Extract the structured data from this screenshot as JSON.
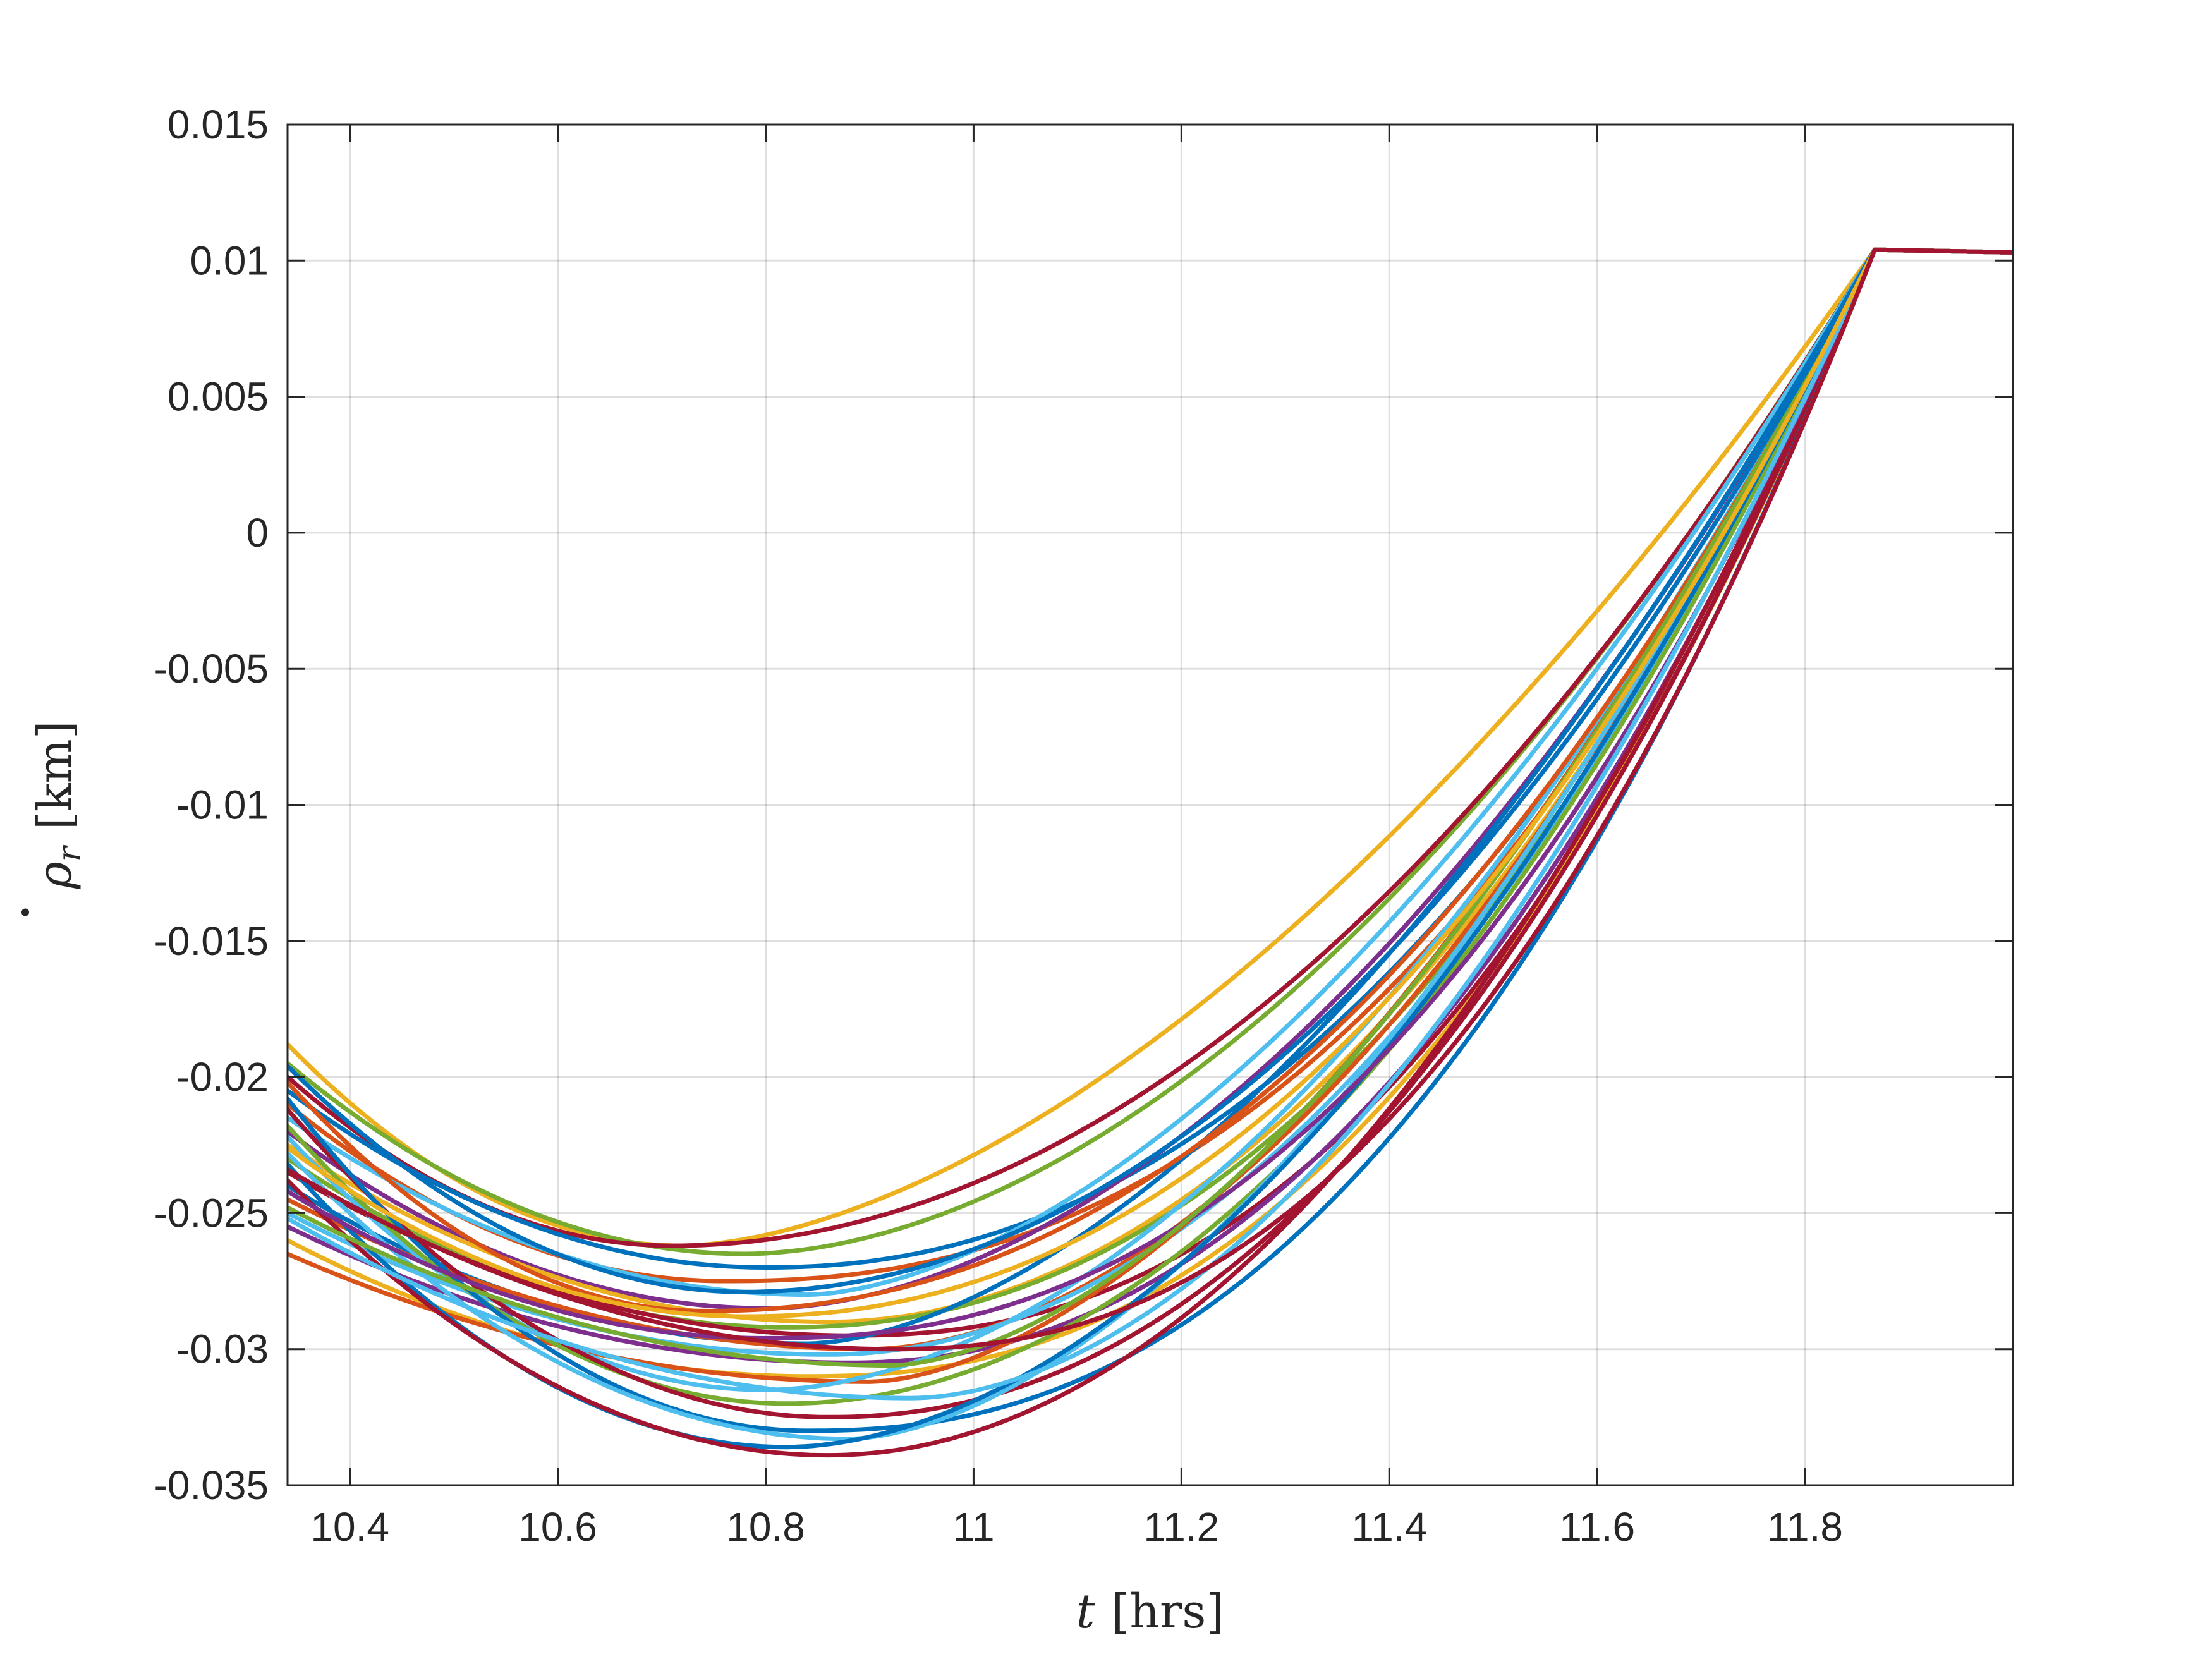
{
  "chart_data": {
    "type": "line",
    "title": "",
    "xlabel_var": "t",
    "xlabel_unit": "[hrs]",
    "ylabel_var": "ρ",
    "ylabel_sub": "r",
    "ylabel_unit": "[km]",
    "xlim": [
      10.34,
      12.0
    ],
    "ylim": [
      -0.035,
      0.015
    ],
    "xticks": [
      10.4,
      10.6,
      10.8,
      11,
      11.2,
      11.4,
      11.6,
      11.8
    ],
    "xtick_labels": [
      "10.4",
      "10.6",
      "10.8",
      "11",
      "11.2",
      "11.4",
      "11.6",
      "11.8"
    ],
    "yticks": [
      -0.035,
      -0.03,
      -0.025,
      -0.02,
      -0.015,
      -0.01,
      -0.005,
      0,
      0.005,
      0.01,
      0.015
    ],
    "ytick_labels": [
      "-0.035",
      "-0.03",
      "-0.025",
      "-0.02",
      "-0.015",
      "-0.01",
      "-0.005",
      "0",
      "0.005",
      "0.01",
      "0.015"
    ],
    "grid": true,
    "legend": "none",
    "x_end": 11.867,
    "y_end": 0.0104,
    "y_final": 0.0103,
    "palette": [
      "#0072BD",
      "#D95319",
      "#EDB120",
      "#7E2F8E",
      "#77AC30",
      "#4DBEEE",
      "#A2142F"
    ],
    "series": [
      {
        "x0": 10.34,
        "y0": -0.0188,
        "xm": 10.72,
        "ym": -0.0262,
        "color": "#EDB120"
      },
      {
        "x0": 10.34,
        "y0": -0.0195,
        "xm": 10.78,
        "ym": -0.0265,
        "color": "#77AC30"
      },
      {
        "x0": 10.34,
        "y0": -0.02,
        "xm": 10.71,
        "ym": -0.0262,
        "color": "#A2142F"
      },
      {
        "x0": 10.34,
        "y0": -0.0205,
        "xm": 10.8,
        "ym": -0.027,
        "color": "#0072BD"
      },
      {
        "x0": 10.34,
        "y0": -0.021,
        "xm": 10.76,
        "ym": -0.0275,
        "color": "#D95319"
      },
      {
        "x0": 10.34,
        "y0": -0.0215,
        "xm": 10.84,
        "ym": -0.028,
        "color": "#4DBEEE"
      },
      {
        "x0": 10.34,
        "y0": -0.022,
        "xm": 10.8,
        "ym": -0.0285,
        "color": "#7E2F8E"
      },
      {
        "x0": 10.34,
        "y0": -0.0225,
        "xm": 10.86,
        "ym": -0.029,
        "color": "#EDB120"
      },
      {
        "x0": 10.34,
        "y0": -0.023,
        "xm": 10.82,
        "ym": -0.0292,
        "color": "#77AC30"
      },
      {
        "x0": 10.34,
        "y0": -0.0235,
        "xm": 10.88,
        "ym": -0.0295,
        "color": "#A2142F"
      },
      {
        "x0": 10.34,
        "y0": -0.024,
        "xm": 10.84,
        "ym": -0.0298,
        "color": "#0072BD"
      },
      {
        "x0": 10.34,
        "y0": -0.0245,
        "xm": 10.9,
        "ym": -0.03,
        "color": "#D95319"
      },
      {
        "x0": 10.34,
        "y0": -0.025,
        "xm": 10.86,
        "ym": -0.0302,
        "color": "#4DBEEE"
      },
      {
        "x0": 10.34,
        "y0": -0.0255,
        "xm": 10.88,
        "ym": -0.0305,
        "color": "#7E2F8E"
      },
      {
        "x0": 10.34,
        "y0": -0.026,
        "xm": 10.84,
        "ym": -0.031,
        "color": "#EDB120"
      },
      {
        "x0": 10.34,
        "y0": -0.0265,
        "xm": 10.9,
        "ym": -0.0312,
        "color": "#D95319"
      },
      {
        "x0": 10.34,
        "y0": -0.0222,
        "xm": 10.8,
        "ym": -0.0315,
        "color": "#4DBEEE"
      },
      {
        "x0": 10.34,
        "y0": -0.0218,
        "xm": 10.82,
        "ym": -0.032,
        "color": "#77AC30"
      },
      {
        "x0": 10.34,
        "y0": -0.0212,
        "xm": 10.86,
        "ym": -0.0325,
        "color": "#A2142F"
      },
      {
        "x0": 10.34,
        "y0": -0.0208,
        "xm": 10.84,
        "ym": -0.033,
        "color": "#0072BD"
      },
      {
        "x0": 10.34,
        "y0": -0.0228,
        "xm": 10.88,
        "ym": -0.0333,
        "color": "#4DBEEE"
      },
      {
        "x0": 10.34,
        "y0": -0.0232,
        "xm": 10.82,
        "ym": -0.0336,
        "color": "#0072BD"
      },
      {
        "x0": 10.34,
        "y0": -0.0238,
        "xm": 10.86,
        "ym": -0.0339,
        "color": "#A2142F"
      },
      {
        "x0": 10.34,
        "y0": -0.0202,
        "xm": 10.74,
        "ym": -0.0286,
        "color": "#D95319"
      },
      {
        "x0": 10.34,
        "y0": -0.0242,
        "xm": 10.8,
        "ym": -0.0296,
        "color": "#7E2F8E"
      },
      {
        "x0": 10.34,
        "y0": -0.0248,
        "xm": 10.92,
        "ym": -0.0306,
        "color": "#77AC30"
      },
      {
        "x0": 10.34,
        "y0": -0.0252,
        "xm": 10.94,
        "ym": -0.0318,
        "color": "#4DBEEE"
      },
      {
        "x0": 10.34,
        "y0": -0.0196,
        "xm": 10.78,
        "ym": -0.0279,
        "color": "#0072BD"
      },
      {
        "x0": 10.34,
        "y0": -0.0226,
        "xm": 10.78,
        "ym": -0.0288,
        "color": "#EDB120"
      },
      {
        "x0": 10.34,
        "y0": -0.0234,
        "xm": 10.92,
        "ym": -0.03,
        "color": "#A2142F"
      }
    ]
  }
}
